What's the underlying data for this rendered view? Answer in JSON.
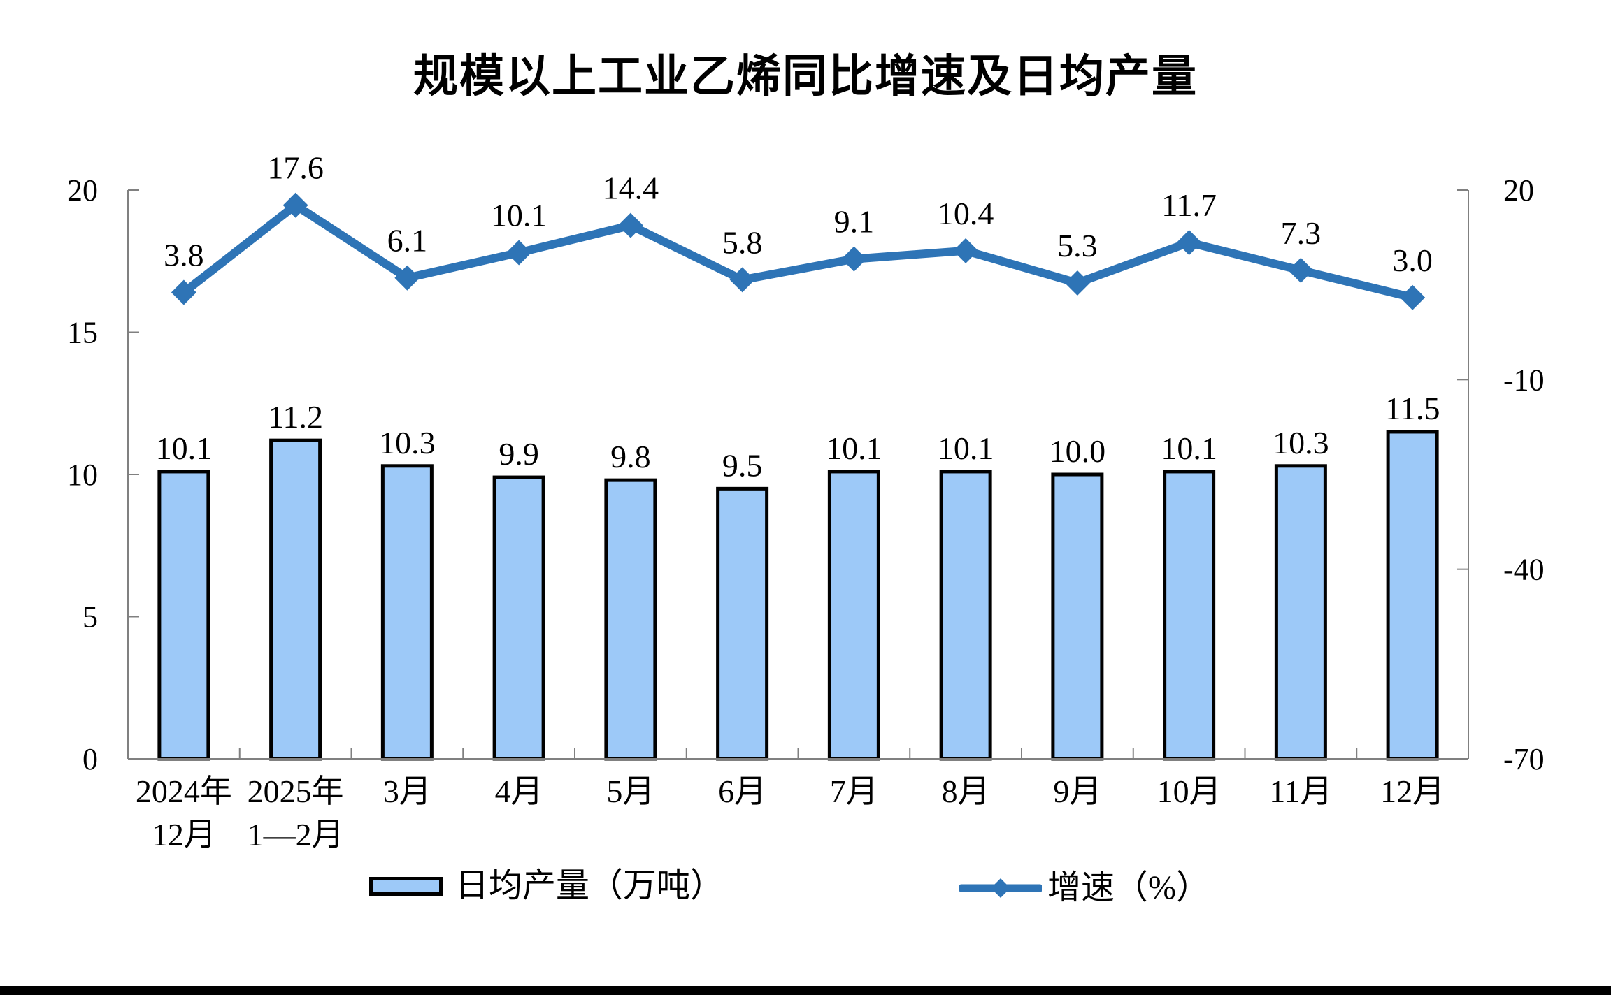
{
  "title": "规模以上工业乙烯同比增速及日均产量",
  "legend": {
    "bar_label": "日均产量（万吨）",
    "line_label": "增速（%）"
  },
  "colors": {
    "bar_fill": "#9DC9F8",
    "bar_border": "#000000",
    "line": "#2E74B6",
    "axis": "#808080",
    "text": "#000000"
  },
  "chart_data": {
    "type": "bar+line combo",
    "title": "规模以上工业乙烯同比增速及日均产量",
    "categories": [
      [
        "2024年",
        "12月"
      ],
      [
        "2025年",
        "1—2月"
      ],
      [
        "3月"
      ],
      [
        "4月"
      ],
      [
        "5月"
      ],
      [
        "6月"
      ],
      [
        "7月"
      ],
      [
        "8月"
      ],
      [
        "9月"
      ],
      [
        "10月"
      ],
      [
        "11月"
      ],
      [
        "12月"
      ]
    ],
    "series": [
      {
        "name": "日均产量（万吨）",
        "type": "bar",
        "axis": "left",
        "values": [
          10.1,
          11.2,
          10.3,
          9.9,
          9.8,
          9.5,
          10.1,
          10.1,
          10.0,
          10.1,
          10.3,
          11.5
        ],
        "labels": [
          "10.1",
          "11.2",
          "10.3",
          "9.9",
          "9.8",
          "9.5",
          "10.1",
          "10.1",
          "10.0",
          "10.1",
          "10.3",
          "11.5"
        ]
      },
      {
        "name": "增速（%）",
        "type": "line",
        "axis": "right",
        "values": [
          3.8,
          17.6,
          6.1,
          10.1,
          14.4,
          5.8,
          9.1,
          10.4,
          5.3,
          11.7,
          7.3,
          3.0
        ],
        "labels": [
          "3.8",
          "17.6",
          "6.1",
          "10.1",
          "14.4",
          "5.8",
          "9.1",
          "10.4",
          "5.3",
          "11.7",
          "7.3",
          "3.0"
        ]
      }
    ],
    "left_axis": {
      "min": 0,
      "max": 20,
      "ticks": [
        "0",
        "5",
        "10",
        "15",
        "20"
      ]
    },
    "right_axis": {
      "min": -70,
      "max": 20,
      "ticks": [
        "20",
        "-10",
        "-40",
        "-70"
      ]
    },
    "grid": false,
    "legend_position": "bottom"
  }
}
